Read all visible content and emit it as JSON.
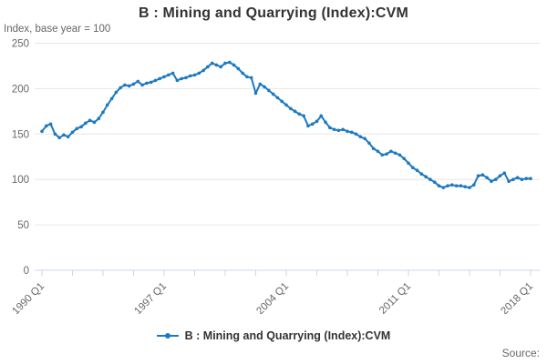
{
  "header": {
    "title": "B : Mining and Quarrying (Index):CVM",
    "subtitle": "Index, base year = 100"
  },
  "footer": {
    "source_label": "Source:"
  },
  "colors": {
    "line": "#1e79c0",
    "grid": "#e6e6e6",
    "axis": "#ccd6eb",
    "tick_label": "#666666"
  },
  "chart_data": {
    "type": "line",
    "title": "B : Mining and Quarrying (Index):CVM",
    "subtitle": "Index, base year = 100",
    "x_start": "1990 Q1",
    "x_end": "2018 Q1",
    "frequency": "quarterly",
    "x_tick_labels": [
      "1990 Q1",
      "1997 Q1",
      "2004 Q1",
      "2011 Q1",
      "2018 Q1"
    ],
    "minor_tick_every_quarters": 7,
    "label_every_quarters": 28,
    "ylim": [
      0,
      250
    ],
    "yticks": [
      0,
      50,
      100,
      150,
      200,
      250
    ],
    "grid": "horizontal",
    "legend_position": "bottom",
    "markers": true,
    "series": [
      {
        "name": "B : Mining and Quarrying (Index):CVM",
        "values": [
          153,
          159,
          161,
          150,
          146,
          149,
          147,
          152,
          156,
          158,
          162,
          165,
          163,
          167,
          174,
          182,
          189,
          196,
          201,
          204,
          203,
          205,
          208,
          204,
          206,
          207,
          209,
          211,
          213,
          215,
          217,
          209,
          211,
          212,
          214,
          215,
          217,
          220,
          224,
          228,
          226,
          224,
          228,
          229,
          226,
          222,
          217,
          213,
          212,
          195,
          205,
          202,
          198,
          194,
          190,
          186,
          182,
          178,
          175,
          172,
          170,
          159,
          161,
          164,
          170,
          163,
          157,
          155,
          154,
          155,
          153,
          152,
          150,
          147,
          145,
          140,
          134,
          131,
          127,
          128,
          131,
          129,
          127,
          123,
          118,
          113,
          110,
          106,
          103,
          100,
          97,
          93,
          91,
          93,
          94,
          93,
          93,
          92,
          91,
          94,
          104,
          105,
          102,
          98,
          100,
          104,
          107,
          98,
          100,
          102,
          100,
          101,
          101
        ]
      }
    ]
  }
}
